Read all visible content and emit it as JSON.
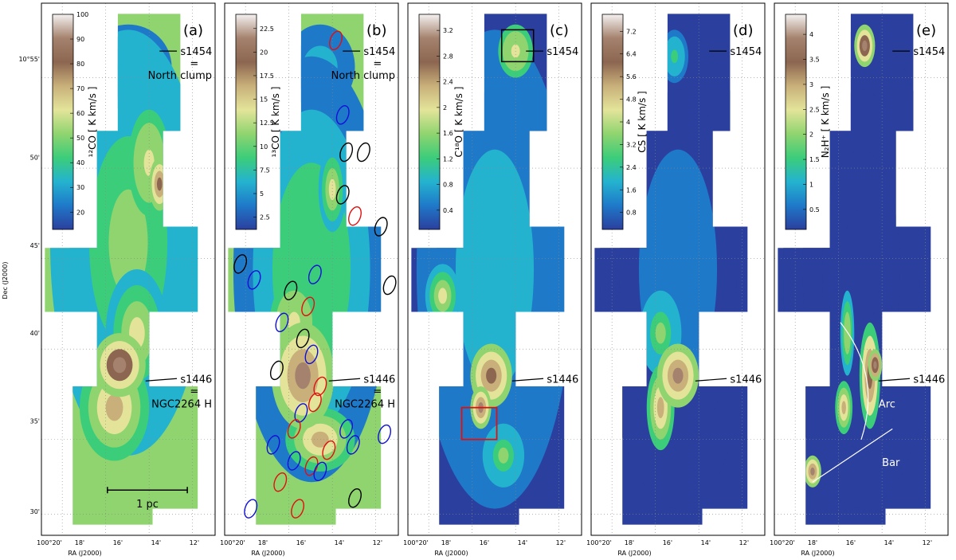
{
  "figure": {
    "ylabel": "Dec (J2000)",
    "xlabel": "RA (J2000)",
    "dec_ticks": [
      "10°55'",
      "50'",
      "45'",
      "40'",
      "35'",
      "30'"
    ],
    "ra_ticks_first": [
      "100°20'",
      "18'",
      "16'",
      "14'",
      "12'"
    ],
    "ra_ticks_other": [
      "100°20'",
      "18'",
      "16'",
      "14'",
      "12'"
    ]
  },
  "colors": {
    "cmap": [
      "#2b3f9e",
      "#1f79c9",
      "#24b3cf",
      "#3ccd7a",
      "#8fd46f",
      "#e3e49a",
      "#c9b07a",
      "#8c6650",
      "#a4826d",
      "#f4f1f1"
    ],
    "outline": "#000000",
    "red_ellipse": "#e01010",
    "blue_ellipse": "#1010d8",
    "black_ellipse": "#000000",
    "label_white": "#ffffff"
  },
  "chart_data": [
    {
      "type": "heatmap",
      "panel": "(a)",
      "colorbar_label": "¹²CO  [ K km/s ]",
      "colorbar_ticks": [
        20,
        30,
        40,
        50,
        60,
        70,
        80,
        90,
        100
      ],
      "colorbar_range": [
        13,
        100
      ],
      "annotations": [
        {
          "text": "s1454",
          "sub1": "=",
          "sub2": "North clump"
        },
        {
          "text": "s1446",
          "sub1": "=",
          "sub2": "NGC2264 H"
        }
      ],
      "scalebar": "1 pc"
    },
    {
      "type": "heatmap",
      "panel": "(b)",
      "colorbar_label": "¹³CO  [ K km/s ]",
      "colorbar_ticks": [
        2.5,
        5.0,
        7.5,
        10.0,
        12.5,
        15.0,
        17.5,
        20.0,
        22.5
      ],
      "colorbar_range": [
        1.2,
        24.0
      ],
      "annotations": [
        {
          "text": "s1454",
          "sub1": "=",
          "sub2": "North clump"
        },
        {
          "text": "s1446",
          "sub1": "=",
          "sub2": "NGC2264 H"
        }
      ]
    },
    {
      "type": "heatmap",
      "panel": "(c)",
      "colorbar_label": "C¹⁸O  [ K km/s ]",
      "colorbar_ticks": [
        0.4,
        0.8,
        1.2,
        1.6,
        2.0,
        2.4,
        2.8,
        3.2
      ],
      "colorbar_range": [
        0.1,
        3.45
      ],
      "annotations": [
        {
          "text": "s1454"
        },
        {
          "text": "s1446"
        }
      ]
    },
    {
      "type": "heatmap",
      "panel": "(d)",
      "colorbar_label": "CS  [ K km/s ]",
      "colorbar_ticks": [
        0.8,
        1.6,
        2.4,
        3.2,
        4.0,
        4.8,
        5.6,
        6.4,
        7.2
      ],
      "colorbar_range": [
        0.2,
        7.8
      ],
      "annotations": [
        {
          "text": "s1454"
        },
        {
          "text": "s1446"
        }
      ]
    },
    {
      "type": "heatmap",
      "panel": "(e)",
      "colorbar_label": "N₂H⁺  [ K km/s ]",
      "colorbar_ticks": [
        0.5,
        1.0,
        1.5,
        2.0,
        2.5,
        3.0,
        3.5,
        4.0
      ],
      "colorbar_range": [
        0.1,
        4.4
      ],
      "annotations": [
        {
          "text": "s1454"
        },
        {
          "text": "s1446"
        },
        {
          "text": "Arc"
        },
        {
          "text": "Bar"
        }
      ]
    }
  ]
}
